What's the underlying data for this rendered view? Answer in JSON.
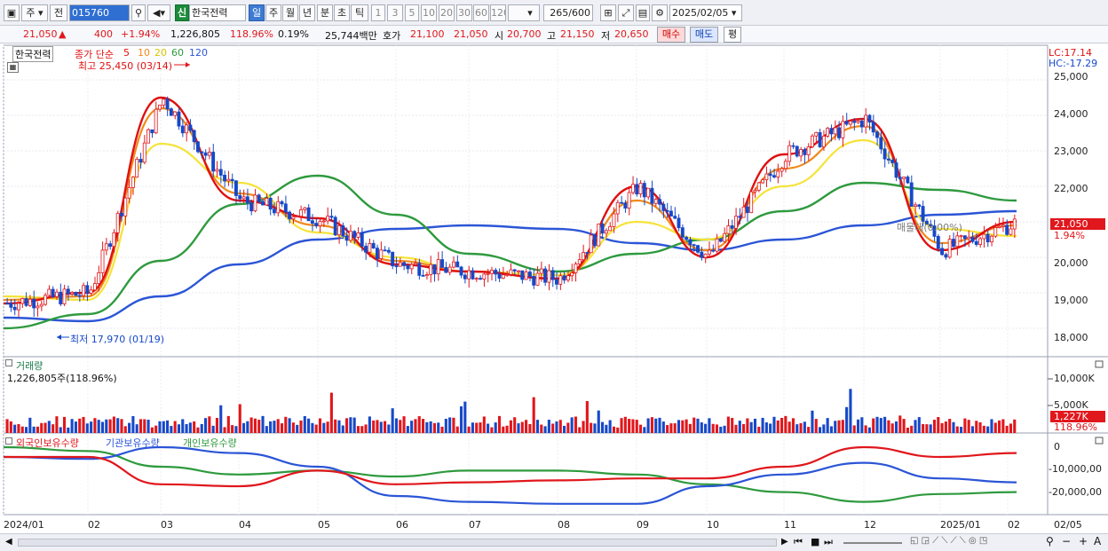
{
  "toolbar": {
    "period_type": "주",
    "prev_label": "전",
    "stock_code": "015760",
    "new_badge": "신",
    "stock_name": "한국전력",
    "intervals": [
      "일",
      "주",
      "월",
      "년",
      "분",
      "초",
      "틱"
    ],
    "selected_interval": "일",
    "interval_numbers": [
      "1",
      "3",
      "5",
      "10",
      "20",
      "30",
      "60",
      "120"
    ],
    "count_value": "265",
    "count_total": "/600",
    "date_value": "2025/02/05"
  },
  "quote": {
    "price": "21,050",
    "change_arrow": "▲",
    "change": "400",
    "change_pct": "+1.94%",
    "volume": "1,226,805",
    "volume_ratio": "118.96%",
    "turnover_pct": "0.19%",
    "trade_value": "25,744백만",
    "bid_label": "호가",
    "ask_price": "21,100",
    "bid_price": "21,050",
    "open_label": "시",
    "open": "20,700",
    "high_label": "고",
    "high": "21,150",
    "low_label": "저",
    "low": "20,650",
    "buy_button": "매수",
    "sell_button": "매도",
    "eval_button": "평"
  },
  "price_panel": {
    "name_box": "한국전력",
    "ma_label": "종가 단순",
    "ma_periods": [
      "5",
      "10",
      "20",
      "60",
      "120"
    ],
    "high_marker": "최고 25,450 (03/14)",
    "low_marker": "최저 17,970 (01/19)",
    "lc": "LC:17.14",
    "hc": "HC:-17.29",
    "current_price_tag": "21,050",
    "current_pct_tag": "1.94%",
    "watermark": "매물대(0.00%)",
    "y_ticks": [
      "25,000",
      "24,000",
      "23,000",
      "22,000",
      "21,000",
      "20,000",
      "19,000",
      "18,000"
    ]
  },
  "volume_panel": {
    "title": "거래량",
    "value": "1,226,805주(118.96%)",
    "y_ticks": [
      "10,000K",
      "5,000K"
    ],
    "current_tag": "1,227K",
    "current_pct": "118.96%"
  },
  "holding_panel": {
    "legend": [
      "외국인보유수량",
      "기관보유수량",
      "개인보유수량"
    ],
    "y_ticks": [
      "0",
      "-10,000,00",
      "-20,000,00"
    ]
  },
  "x_axis": {
    "labels": [
      "2024/01",
      "02",
      "03",
      "04",
      "05",
      "06",
      "07",
      "08",
      "09",
      "10",
      "11",
      "12",
      "2025/01",
      "02"
    ],
    "right_label": "02/05"
  },
  "colors": {
    "up": "#e0171c",
    "down": "#1648c8",
    "ma5": "#e01010",
    "ma10": "#f08a1c",
    "ma20": "#f5e33a",
    "ma60": "#2e9a3e",
    "ma120": "#2b55d6",
    "foreign": "#e0171c",
    "institution": "#2b55d6",
    "individual": "#2e9a3e"
  },
  "chart_data": {
    "type": "line",
    "title": "한국전력",
    "x": [
      "2024/01",
      "02",
      "03",
      "04",
      "05",
      "06",
      "07",
      "08",
      "09",
      "10",
      "11",
      "12",
      "2025/01",
      "02"
    ],
    "ylim": [
      17500,
      25500
    ],
    "series": [
      {
        "name": "5",
        "values": [
          18700,
          19000,
          24500,
          21600,
          21100,
          19800,
          19600,
          19400,
          22000,
          20000,
          22900,
          23900,
          20200,
          21000
        ]
      },
      {
        "name": "10",
        "values": [
          18800,
          18900,
          24200,
          21800,
          20900,
          19900,
          19600,
          19400,
          21600,
          20200,
          22500,
          23700,
          20400,
          20900
        ]
      },
      {
        "name": "20",
        "values": [
          18900,
          18800,
          23200,
          22100,
          20700,
          20000,
          19600,
          19500,
          21000,
          20500,
          22000,
          23300,
          20800,
          20600
        ]
      },
      {
        "name": "60",
        "values": [
          18000,
          18400,
          19900,
          21500,
          22300,
          21200,
          20100,
          19600,
          20100,
          20500,
          21300,
          22100,
          21900,
          21600
        ]
      },
      {
        "name": "120",
        "values": [
          18300,
          18200,
          18900,
          19800,
          20500,
          20800,
          20900,
          20800,
          20400,
          20200,
          20500,
          20900,
          21200,
          21300
        ]
      }
    ]
  }
}
